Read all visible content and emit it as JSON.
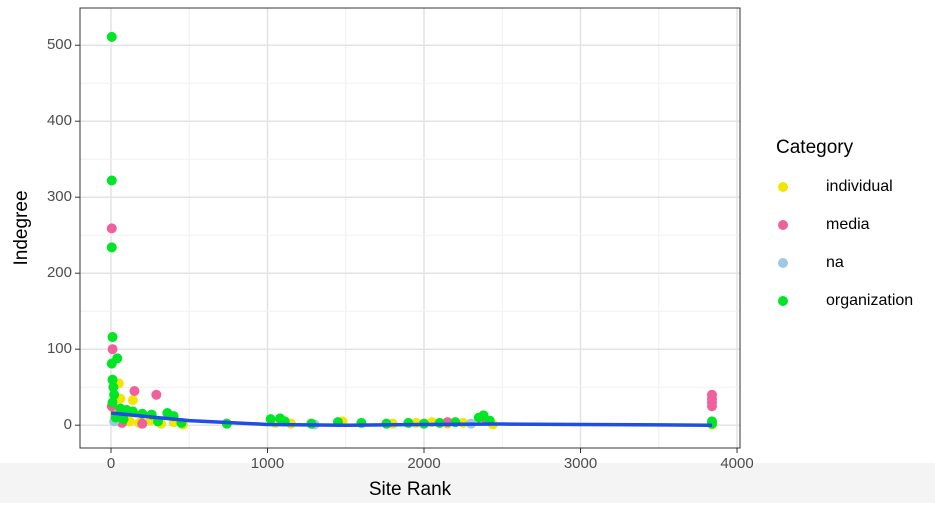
{
  "chart_data": {
    "type": "scatter",
    "x_label": "Site Rank",
    "y_label": "Indegree",
    "legend_title": "Category",
    "legend_position": "right",
    "grid": true,
    "xlim": [
      -198,
      4019
    ],
    "ylim": [
      -30,
      549
    ],
    "xticks": [
      0,
      1000,
      2000,
      3000,
      4000
    ],
    "yticks": [
      0,
      100,
      200,
      300,
      400,
      500
    ],
    "series": [
      {
        "name": "individual",
        "color": "#f2e600",
        "x": [
          50,
          60,
          140,
          20,
          80,
          120,
          180,
          250,
          320,
          400,
          460,
          1050,
          1150,
          1480,
          1800,
          1950,
          2050,
          2150,
          2250,
          2440,
          3840
        ],
        "values": [
          55,
          35,
          33,
          20,
          10,
          5,
          3,
          6,
          2,
          4,
          1,
          3,
          2,
          5,
          2,
          3,
          4,
          2,
          3,
          1,
          1
        ]
      },
      {
        "name": "media",
        "color": "#f0609a",
        "x": [
          5,
          10,
          150,
          290,
          5,
          30,
          70,
          200,
          2150,
          2400,
          3840,
          3840,
          3840,
          3840
        ],
        "values": [
          259,
          100,
          45,
          40,
          25,
          12,
          3,
          2,
          4,
          6,
          40,
          35,
          30,
          25
        ]
      },
      {
        "name": "na",
        "color": "#9ecae1",
        "x": [
          20,
          1300,
          2300
        ],
        "values": [
          5,
          1,
          2
        ]
      },
      {
        "name": "organization",
        "color": "#00e626",
        "x": [
          5,
          5,
          5,
          10,
          40,
          5,
          10,
          15,
          20,
          10,
          60,
          100,
          140,
          200,
          260,
          360,
          400,
          30,
          80,
          300,
          450,
          740,
          1020,
          1080,
          1110,
          1280,
          1450,
          1600,
          1760,
          1900,
          2000,
          2100,
          2200,
          2350,
          2380,
          2420,
          3840,
          3840
        ],
        "values": [
          511,
          322,
          234,
          116,
          88,
          81,
          60,
          50,
          40,
          30,
          22,
          20,
          18,
          15,
          14,
          16,
          12,
          10,
          8,
          5,
          3,
          2,
          8,
          9,
          5,
          2,
          4,
          3,
          2,
          3,
          2,
          3,
          4,
          10,
          13,
          6,
          5,
          2
        ]
      }
    ],
    "trend": {
      "color": "#1f4de6",
      "x": [
        0,
        200,
        500,
        1000,
        1500,
        2000,
        2500,
        3000,
        3500,
        3840
      ],
      "values": [
        16,
        12,
        6,
        1,
        0,
        1,
        1.5,
        1,
        0.5,
        0
      ]
    }
  }
}
